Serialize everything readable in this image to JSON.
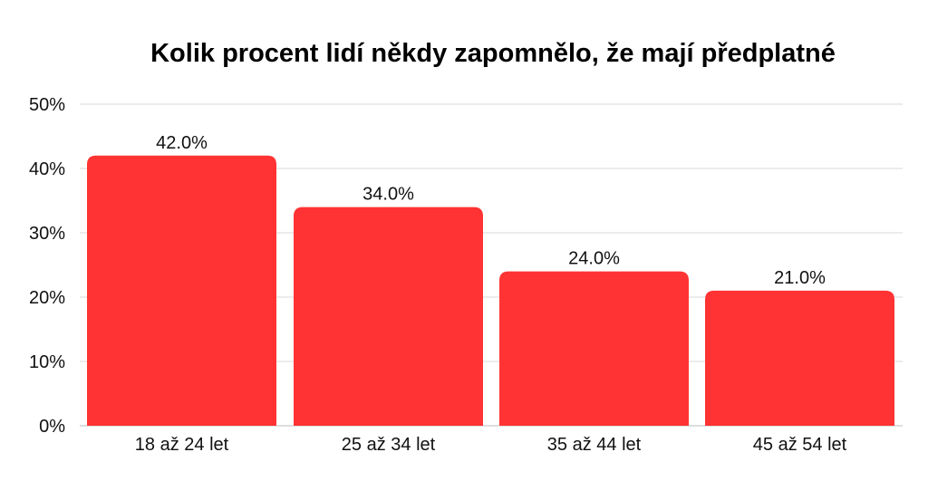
{
  "chart_data": {
    "type": "bar",
    "title": "Kolik procent lidí někdy zapomnělo, že mají předplatné",
    "xlabel": "",
    "ylabel": "",
    "categories": [
      "18 až 24 let",
      "25 až 34 let",
      "35 až 44 let",
      "45 až 54 let"
    ],
    "values": [
      42.0,
      34.0,
      24.0,
      21.0
    ],
    "data_labels": [
      "42.0%",
      "34.0%",
      "24.0%",
      "21.0%"
    ],
    "ylim": [
      0,
      50
    ],
    "yticks": [
      0,
      10,
      20,
      30,
      40,
      50
    ],
    "ytick_labels": [
      "0%",
      "10%",
      "20%",
      "30%",
      "40%",
      "50%"
    ],
    "grid": true,
    "legend": "none",
    "bar_color": "#ff3333"
  }
}
